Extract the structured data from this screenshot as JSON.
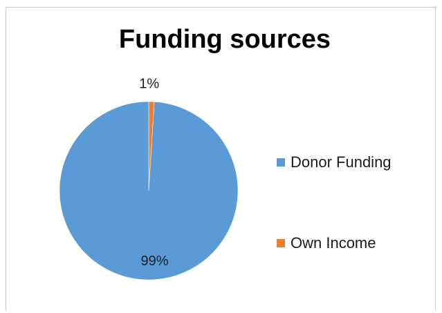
{
  "chart_data": {
    "type": "pie",
    "title": "Funding sources",
    "categories": [
      "Donor Funding",
      "Own Income"
    ],
    "values": [
      99,
      1
    ],
    "data_labels": [
      "99%",
      "1%"
    ],
    "colors": [
      "#5b9bd5",
      "#ed7d31"
    ],
    "legend_position": "right"
  }
}
